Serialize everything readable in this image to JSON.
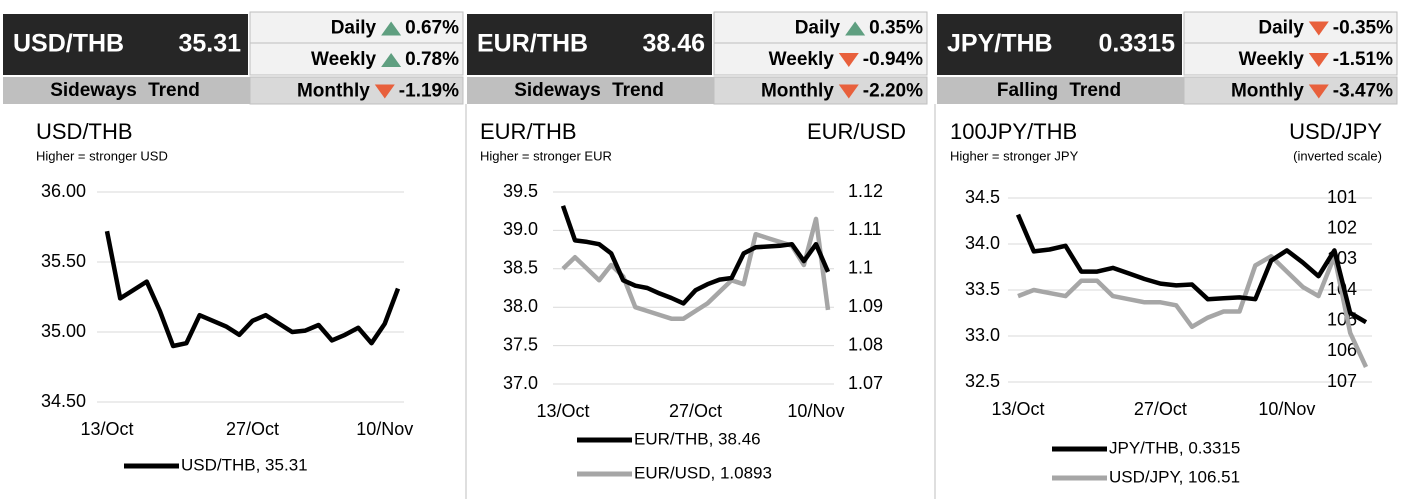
{
  "panels": [
    {
      "pair": "USD/THB",
      "rate": "35.31",
      "trend": "Sideways Trend",
      "changes": [
        {
          "period": "Daily",
          "change": "0.67%"
        },
        {
          "period": "Weekly",
          "change": "0.78%"
        },
        {
          "period": "Monthly",
          "change": "-1.19%"
        }
      ]
    },
    {
      "pair": "EUR/THB",
      "rate": "38.46",
      "trend": "Sideways Trend",
      "changes": [
        {
          "period": "Daily",
          "change": "0.35%"
        },
        {
          "period": "Weekly",
          "change": "-0.94%"
        },
        {
          "period": "Monthly",
          "change": "-2.20%"
        }
      ]
    },
    {
      "pair": "JPY/THB",
      "rate": "0.3315",
      "trend": "Falling Trend",
      "changes": [
        {
          "period": "Daily",
          "change": "-0.35%"
        },
        {
          "period": "Weekly",
          "change": "-1.51%"
        },
        {
          "period": "Monthly",
          "change": "-3.47%"
        }
      ]
    }
  ],
  "chart_data": [
    {
      "type": "line",
      "title": "USD/THB",
      "subtitle": "Higher = stronger USD",
      "categories": [
        "13/Oct",
        null,
        null,
        null,
        null,
        null,
        null,
        null,
        null,
        null,
        null,
        "27/Oct",
        null,
        null,
        null,
        null,
        null,
        null,
        null,
        null,
        null,
        "10/Nov",
        null
      ],
      "ylim": [
        34.5,
        36.0
      ],
      "yticks": [
        {
          "value": 34.5,
          "label": "34.50"
        },
        {
          "value": 35,
          "label": "35.00"
        },
        {
          "value": 35.5,
          "label": "35.50"
        },
        {
          "value": 36,
          "label": "36.00"
        }
      ],
      "grid": true,
      "series": [
        {
          "name": "USD/THB, 35.31",
          "color": "#000000",
          "values": [
            35.72,
            35.24,
            35.3,
            35.36,
            35.15,
            34.9,
            34.92,
            35.12,
            35.08,
            35.04,
            34.98,
            35.08,
            35.12,
            35.06,
            35.0,
            35.01,
            35.05,
            34.94,
            34.98,
            35.03,
            34.92,
            35.06,
            35.31
          ]
        }
      ]
    },
    {
      "type": "line",
      "title": "EUR/THB",
      "subtitle": "Higher = stronger EUR",
      "y2_title": "EUR/USD",
      "categories": [
        "13/Oct",
        null,
        null,
        null,
        null,
        null,
        null,
        null,
        null,
        null,
        null,
        "27/Oct",
        null,
        null,
        null,
        null,
        null,
        null,
        null,
        null,
        null,
        "10/Nov",
        null
      ],
      "ylim": [
        37.0,
        39.5
      ],
      "yticks": [
        {
          "value": 37,
          "label": "37.0"
        },
        {
          "value": 37.5,
          "label": "37.5"
        },
        {
          "value": 38,
          "label": "38.0"
        },
        {
          "value": 38.5,
          "label": "38.5"
        },
        {
          "value": 39,
          "label": "39.0"
        },
        {
          "value": 39.5,
          "label": "39.5"
        }
      ],
      "y2lim": [
        1.07,
        1.12
      ],
      "y2ticks": [
        1.07,
        1.08,
        1.09,
        1.1,
        1.11,
        1.12
      ],
      "grid": true,
      "series": [
        {
          "name": "EUR/THB, 38.46",
          "color": "#000000",
          "values": [
            39.32,
            38.87,
            38.85,
            38.82,
            38.7,
            38.35,
            38.28,
            38.25,
            38.18,
            38.12,
            38.05,
            38.22,
            38.3,
            38.36,
            38.38,
            38.7,
            38.78,
            38.79,
            38.8,
            38.82,
            38.6,
            38.82,
            38.46
          ]
        },
        {
          "name": "EUR/USD, 1.0893",
          "color": "#a6a6a6",
          "axis": "y2",
          "values": [
            1.1,
            1.103,
            1.1,
            1.097,
            1.101,
            1.098,
            1.09,
            1.089,
            1.088,
            1.087,
            1.087,
            1.089,
            1.091,
            1.094,
            1.097,
            1.096,
            1.109,
            1.108,
            1.107,
            1.106,
            1.101,
            1.113,
            1.0893
          ]
        }
      ]
    },
    {
      "type": "line",
      "title": "100JPY/THB",
      "subtitle": "Higher = stronger JPY",
      "y2_title": "USD/JPY",
      "y2_subtitle": "(inverted scale)",
      "y2_inverted": true,
      "categories": [
        "13/Oct",
        null,
        null,
        null,
        null,
        null,
        null,
        null,
        null,
        "27/Oct",
        null,
        null,
        null,
        null,
        null,
        null,
        null,
        "10/Nov",
        null,
        null,
        null,
        null,
        null
      ],
      "ylim": [
        32.5,
        34.5
      ],
      "yticks": [
        32.5,
        {
          "value": 33,
          "label": "33.0"
        },
        33.5,
        {
          "value": 34,
          "label": "34.0"
        },
        34.5
      ],
      "y2lim": [
        101,
        107
      ],
      "y2ticks": [
        101,
        102,
        103,
        104,
        105,
        106,
        107
      ],
      "grid": true,
      "series": [
        {
          "name": "JPY/THB, 0.3315",
          "color": "#000000",
          "values": [
            34.32,
            33.92,
            33.94,
            33.98,
            33.7,
            33.7,
            33.74,
            33.68,
            33.62,
            33.57,
            33.55,
            33.56,
            33.4,
            33.41,
            33.42,
            33.4,
            33.82,
            33.93,
            33.8,
            33.65,
            33.93,
            33.25,
            33.15
          ]
        },
        {
          "name": "USD/JPY, 106.51",
          "color": "#a6a6a6",
          "axis": "y2",
          "values": [
            104.2,
            104.0,
            104.1,
            104.2,
            103.7,
            103.7,
            104.2,
            104.3,
            104.4,
            104.4,
            104.5,
            105.2,
            104.9,
            104.7,
            104.7,
            103.2,
            102.9,
            103.4,
            103.9,
            104.2,
            102.9,
            105.4,
            106.51
          ]
        }
      ]
    }
  ]
}
